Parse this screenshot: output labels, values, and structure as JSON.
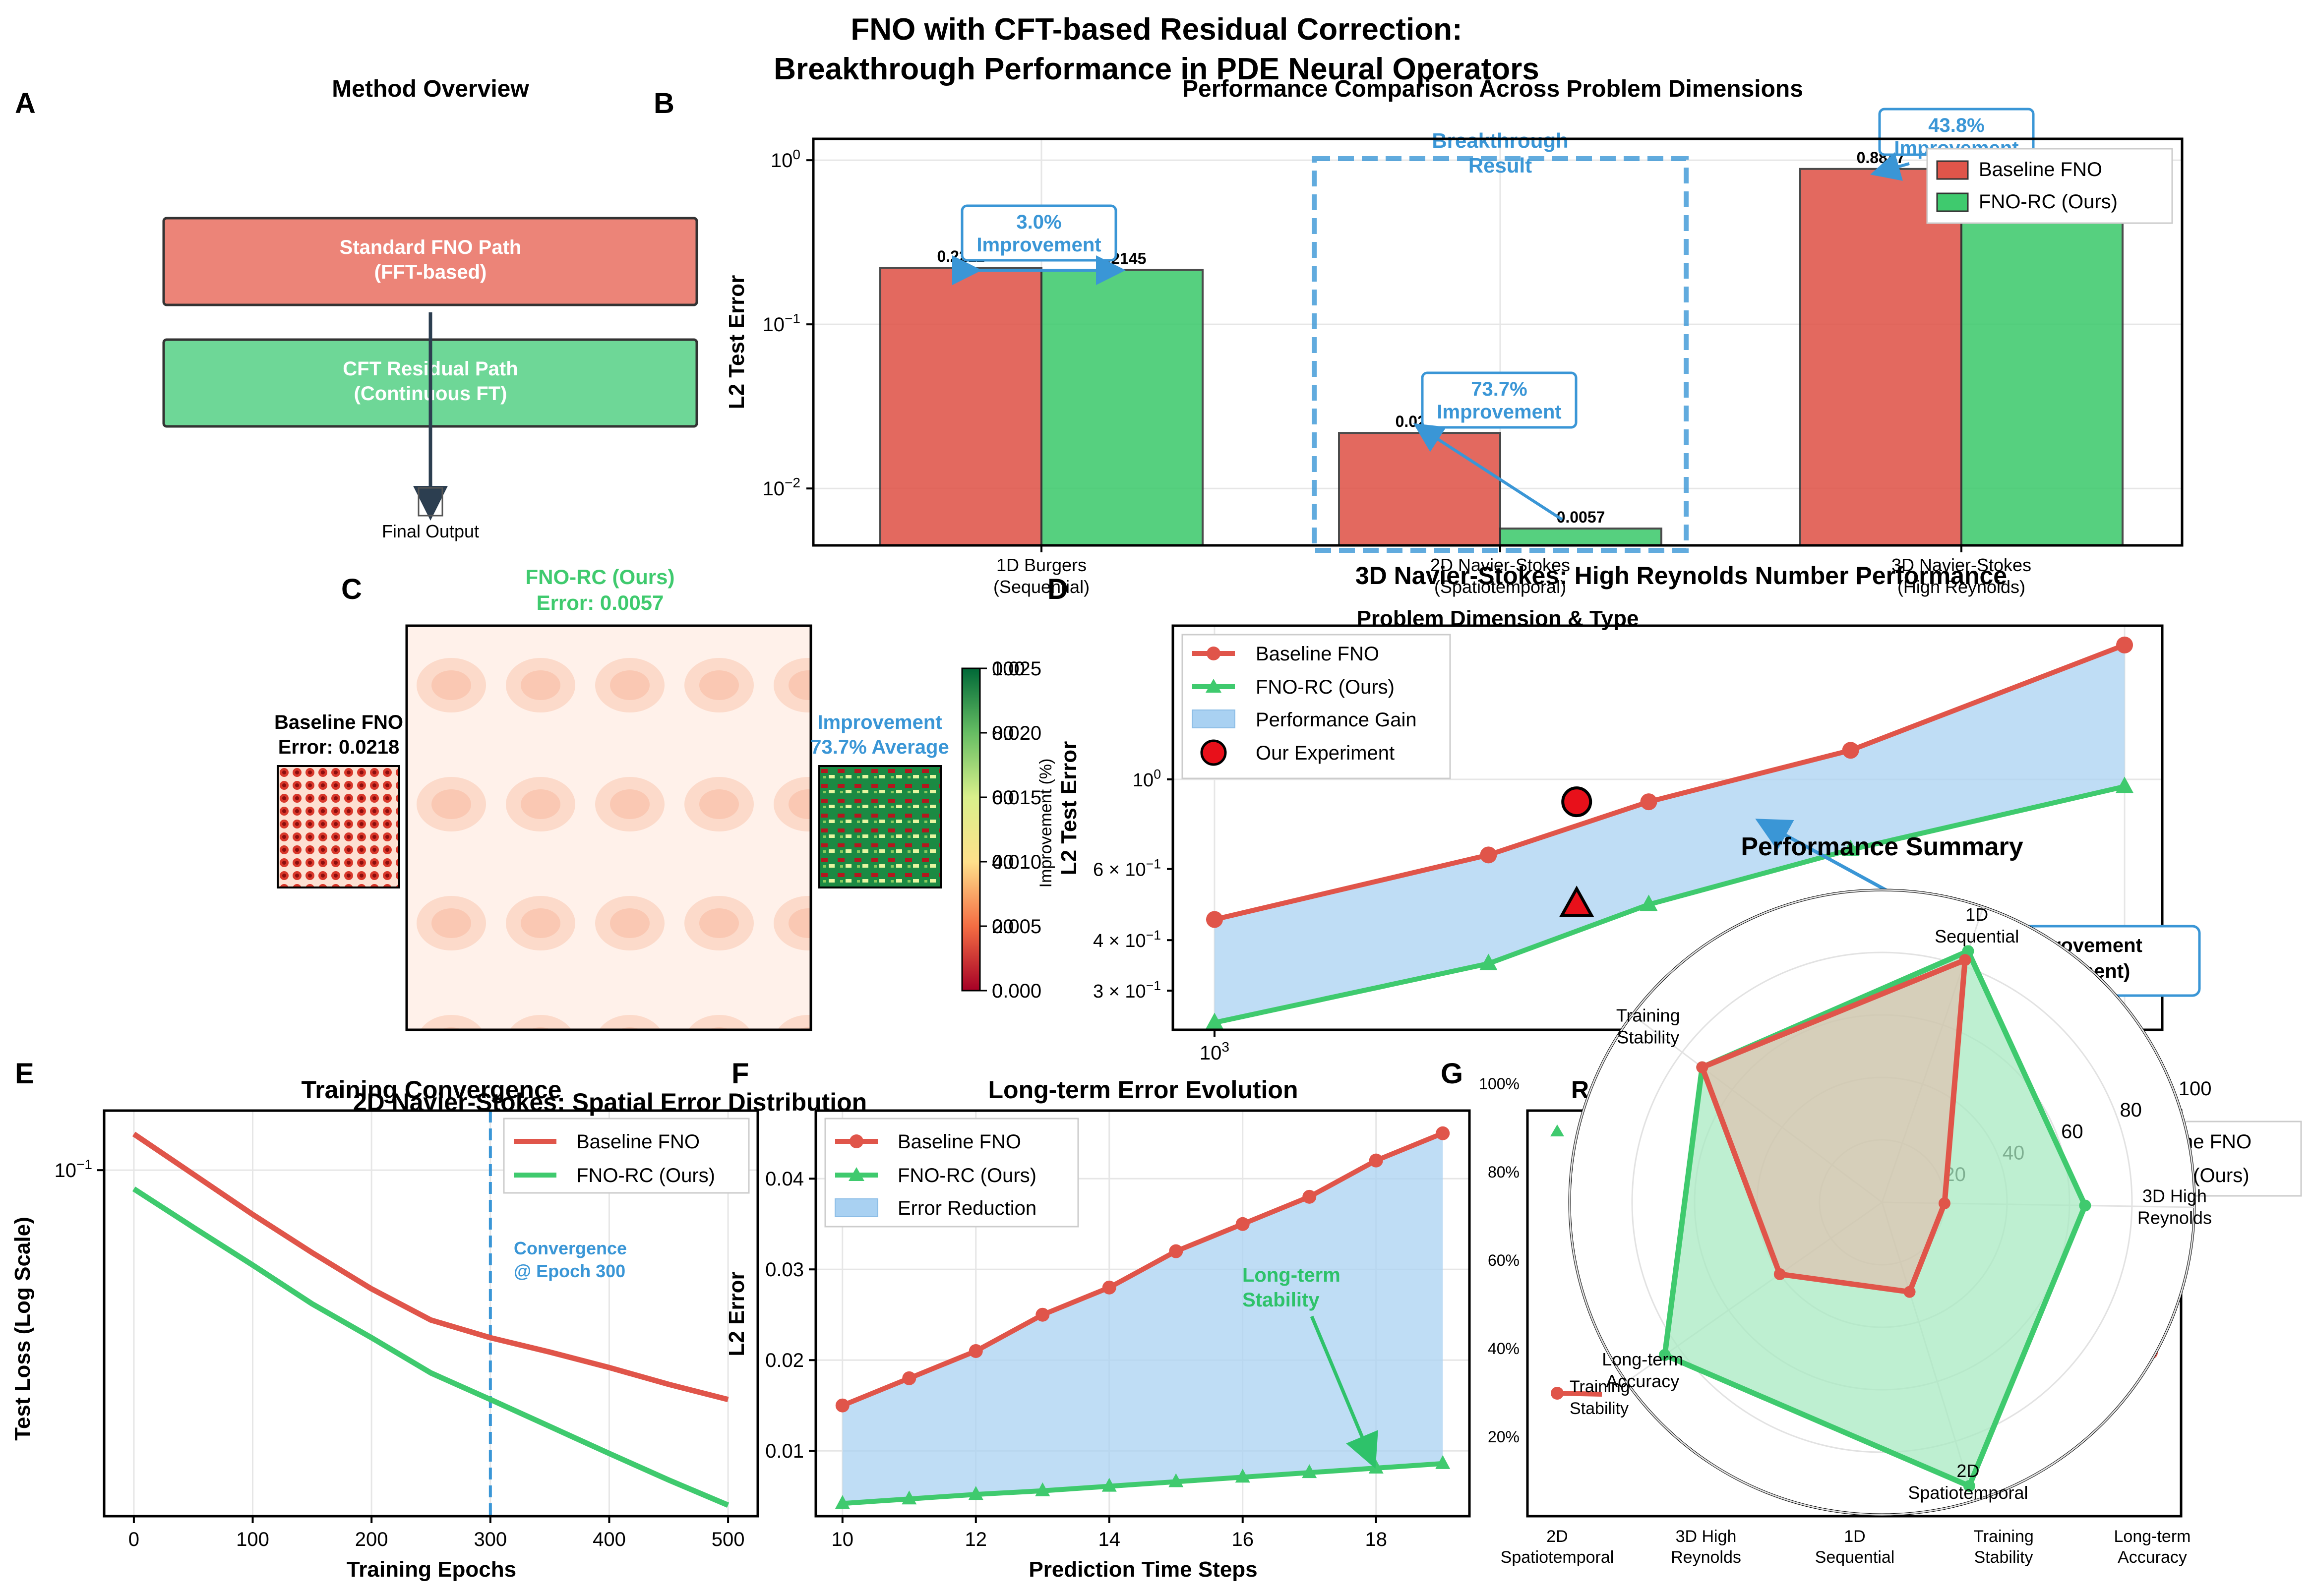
{
  "figure": {
    "title_line1": "FNO with CFT-based Residual Correction:",
    "title_line2": "Breakthrough Performance in PDE Neural Operators"
  },
  "colors": {
    "baseline": "#e0554a",
    "ours": "#3fca6e",
    "accent": "#3a96d6",
    "gain_fill": "#a9d1f2",
    "path_red": "#ec8478",
    "path_green": "#6ed797"
  },
  "panel_labels": [
    "A",
    "B",
    "C",
    "D",
    "E",
    "F",
    "G"
  ],
  "panel_a": {
    "title": "Method Overview",
    "box1_line1": "Standard FNO Path",
    "box1_line2": "(FFT-based)",
    "box2_line1": "CFT Residual Path",
    "box2_line2": "(Continuous FT)",
    "output_label": "Final Output"
  },
  "panel_c": {
    "title_line1": "2D Navier-Stokes: Spatial Error Distribution",
    "left_title_line1": "Baseline FNO",
    "left_title_line2": "Error: 0.0218",
    "center_title_line1": "FNO-RC (Ours)",
    "center_title_line2": "Error: 0.0057",
    "right_title_line1": "Improvement",
    "right_title_line2": "73.7% Average",
    "colorbar_ticks_error": [
      "0.000",
      "0.005",
      "0.010",
      "0.015",
      "0.020",
      "0.025"
    ],
    "colorbar_ticks_improvement": [
      "0",
      "20",
      "40",
      "60",
      "80",
      "100"
    ],
    "colorbar_label": "Improvement (%)"
  },
  "chart_data": [
    {
      "id": "B",
      "type": "bar",
      "title": "Performance Comparison Across Problem Dimensions",
      "xlabel": "Problem Dimension & Type",
      "ylabel": "L2 Test Error",
      "yscale": "log",
      "ylim": [
        0.0045,
        1.35
      ],
      "ytick_labels": [
        "10^-2",
        "10^-1",
        "10^0"
      ],
      "categories": [
        [
          "1D Burgers",
          "(Sequential)"
        ],
        [
          "2D Navier-Stokes",
          "(Spatiotemporal)"
        ],
        [
          "3D Navier-Stokes",
          "(High Reynolds)"
        ]
      ],
      "series": [
        {
          "name": "Baseline FNO",
          "values": [
            0.2211,
            0.0218,
            0.8847
          ],
          "labels": [
            "0.2211",
            "0.0218",
            "0.8847"
          ]
        },
        {
          "name": "FNO-RC (Ours)",
          "values": [
            0.2145,
            0.0057,
            0.5
          ],
          "labels": [
            "0.2145",
            "0.0057",
            ""
          ]
        }
      ],
      "annotations": [
        {
          "line1": "3.0%",
          "line2": "Improvement"
        },
        {
          "line1": "73.7%",
          "line2": "Improvement"
        },
        {
          "line1": "43.8%",
          "line2": "Improvement"
        }
      ],
      "highlight_line1": "Breakthrough",
      "highlight_line2": "Result",
      "legend": "top-right"
    },
    {
      "id": "D",
      "type": "line",
      "title": "3D Navier-Stokes: High Reynolds Number Performance",
      "ylabel": "L2 Test Error",
      "xscale": "log",
      "yscale": "log",
      "xlim": [
        900,
        11000
      ],
      "ylim": [
        0.24,
        2.4
      ],
      "xtick_labels": [
        "10^3"
      ],
      "ytick_labels": [
        "3 × 10^-1",
        "4 × 10^-1",
        "6 × 10^-1",
        "10^0"
      ],
      "x": [
        1000,
        2000,
        3000,
        5000,
        10000
      ],
      "series": [
        {
          "name": "Baseline FNO",
          "values": [
            0.45,
            0.65,
            0.88,
            1.18,
            2.15
          ]
        },
        {
          "name": "FNO-RC (Ours)",
          "values": [
            0.25,
            0.35,
            0.49,
            0.67,
            0.96
          ]
        }
      ],
      "fill_label": "Performance Gain",
      "experiment_label": "Our Experiment",
      "experiment_x": 2500,
      "experiment_values": [
        0.88,
        0.49
      ],
      "annotation_line1": "43.8% Improvement",
      "annotation_line2": "(Our Experiment)",
      "legend": "top-left"
    },
    {
      "id": "E",
      "type": "line",
      "title": "Training Convergence",
      "xlabel": "Training Epochs",
      "ylabel": "Test Loss (Log Scale)",
      "yscale": "log",
      "xlim": [
        -25,
        525
      ],
      "ylim": [
        0.0175,
        0.135
      ],
      "xticks": [
        0,
        100,
        200,
        300,
        400,
        500
      ],
      "ytick_labels": [
        "10^-1"
      ],
      "x": [
        0,
        50,
        100,
        150,
        200,
        250,
        300,
        350,
        400,
        450,
        500
      ],
      "series": [
        {
          "name": "Baseline FNO",
          "values": [
            0.12,
            0.098,
            0.08,
            0.066,
            0.055,
            0.047,
            0.043,
            0.04,
            0.037,
            0.034,
            0.0315
          ]
        },
        {
          "name": "FNO-RC (Ours)",
          "values": [
            0.091,
            0.075,
            0.062,
            0.051,
            0.043,
            0.036,
            0.0315,
            0.0275,
            0.024,
            0.021,
            0.0185
          ]
        }
      ],
      "vline_x": 300,
      "annotation_line1": "Convergence",
      "annotation_line2": "@ Epoch 300",
      "legend": "top-right"
    },
    {
      "id": "F",
      "type": "line",
      "title": "Long-term Error Evolution",
      "xlabel": "Prediction Time Steps",
      "ylabel": "L2 Error",
      "xlim": [
        9.6,
        19.4
      ],
      "ylim": [
        0.0028,
        0.0475
      ],
      "xticks": [
        10,
        12,
        14,
        16,
        18
      ],
      "yticks": [
        0.01,
        0.02,
        0.03,
        0.04
      ],
      "x": [
        10,
        11,
        12,
        13,
        14,
        15,
        16,
        17,
        18,
        19
      ],
      "series": [
        {
          "name": "Baseline FNO",
          "values": [
            0.015,
            0.018,
            0.021,
            0.025,
            0.028,
            0.032,
            0.035,
            0.038,
            0.042,
            0.045
          ]
        },
        {
          "name": "FNO-RC (Ours)",
          "values": [
            0.0042,
            0.0047,
            0.0052,
            0.0056,
            0.0061,
            0.0066,
            0.0071,
            0.0076,
            0.0081,
            0.0086
          ]
        }
      ],
      "fill_label": "Error Reduction",
      "annotation_line1": "Long-term",
      "annotation_line2": "Stability",
      "legend": "top-left"
    },
    {
      "id": "G",
      "type": "radar",
      "title": "Performance Summary",
      "axes": [
        [
          "1D",
          "Sequential"
        ],
        [
          "3D High",
          "Reynolds"
        ],
        [
          "2D",
          "Spatiotemporal"
        ],
        [
          "Long-term",
          "Accuracy"
        ],
        [
          "Training",
          "Stability"
        ]
      ],
      "rmax": 100,
      "rticks": [
        20,
        40,
        60,
        80,
        100
      ],
      "series": [
        {
          "name": "Baseline FNO",
          "values": [
            82,
            20,
            30,
            40,
            72
          ]
        },
        {
          "name": "FNO-RC (Ours)",
          "values": [
            85,
            65,
            95,
            85,
            72
          ]
        }
      ],
      "legend_entries": [
        "Baseline FNO",
        "FNO-RC (Ours)"
      ]
    },
    {
      "id": "G-background",
      "type": "line",
      "title": "R",
      "categories": [
        [
          "2D",
          "Spatiotemporal"
        ],
        [
          "3D High",
          "Reynolds"
        ],
        [
          "1D",
          "Sequential"
        ],
        [
          "Training",
          "Stability"
        ],
        [
          "Long-term",
          "Accuracy"
        ]
      ],
      "ytick_labels": [
        "20%",
        "40%",
        "60%",
        "80%",
        "100%"
      ],
      "series": [
        {
          "name": "Baseline FNO",
          "values": [
            0.3,
            null,
            null,
            null,
            0.4
          ]
        },
        {
          "name": "FNO-RC (Ours)",
          "values": [
            0.95,
            null,
            null,
            null,
            null
          ]
        }
      ],
      "annotation_line1": "Training",
      "annotation_line2": "Stability",
      "legend_entries": [
        "seline FNO",
        "-RC (Ours)"
      ]
    }
  ]
}
